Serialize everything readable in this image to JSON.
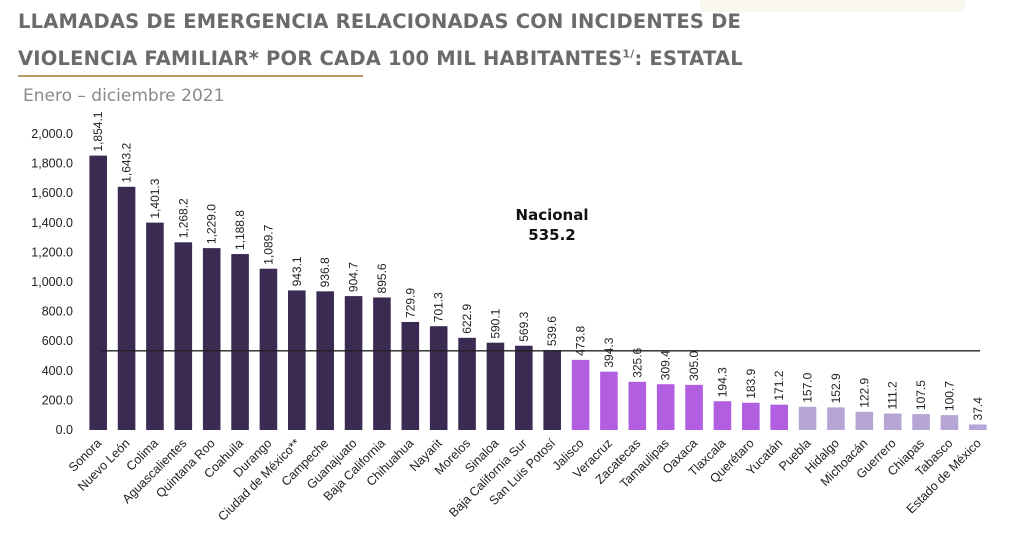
{
  "title_line1": "LLAMADAS DE EMERGENCIA RELACIONADAS CON INCIDENTES DE",
  "title_line2": "VIOLENCIA FAMILIAR* POR CADA 100 MIL HABITANTES",
  "title_superscript": "1/",
  "title_suffix": ": ESTATAL",
  "subtitle": "Enero – diciembre 2021",
  "colors": {
    "high": "#3b2a52",
    "mid": "#b15ee0",
    "low": "#b7a6d5",
    "reference_line": "#222222",
    "title": "#6b6b6b",
    "title_underline": "#b69a66"
  },
  "chart_data": {
    "type": "bar",
    "ylim": [
      0,
      2000
    ],
    "yticks": [
      "0.0",
      "200.0",
      "400.0",
      "600.0",
      "800.0",
      "1,000.0",
      "1,200.0",
      "1,400.0",
      "1,600.0",
      "1,800.0",
      "2,000.0"
    ],
    "ytick_values": [
      0,
      200,
      400,
      600,
      800,
      1000,
      1200,
      1400,
      1600,
      1800,
      2000
    ],
    "grid": false,
    "reference_line": {
      "label": "Nacional",
      "value_label": "535.2",
      "value": 535.2
    },
    "categories": [
      "Sonora",
      "Nuevo León",
      "Colima",
      "Aguascalientes",
      "Quintana Roo",
      "Coahuila",
      "Durango",
      "Ciudad de México**",
      "Campeche",
      "Guanajuato",
      "Baja California",
      "Chihuahua",
      "Nayarit",
      "Morelos",
      "Sinaloa",
      "Baja California Sur",
      "San Luis Potosí",
      "Jalisco",
      "Veracruz",
      "Zacatecas",
      "Tamaulipas",
      "Oaxaca",
      "Tlaxcala",
      "Querétaro",
      "Yucatán",
      "Puebla",
      "Hidalgo",
      "Michoacán",
      "Guerrero",
      "Chiapas",
      "Tabasco",
      "Estado de México"
    ],
    "values": [
      1854.1,
      1643.2,
      1401.3,
      1268.2,
      1229.0,
      1188.8,
      1089.7,
      943.1,
      936.8,
      904.7,
      895.6,
      729.9,
      701.3,
      622.9,
      590.1,
      569.3,
      539.6,
      473.8,
      394.3,
      325.6,
      309.4,
      305.0,
      194.3,
      183.9,
      171.2,
      157.0,
      152.9,
      122.9,
      111.2,
      107.5,
      100.7,
      37.4
    ],
    "value_labels": [
      "1,854.1",
      "1,643.2",
      "1,401.3",
      "1,268.2",
      "1,229.0",
      "1,188.8",
      "1,089.7",
      "943.1",
      "936.8",
      "904.7",
      "895.6",
      "729.9",
      "701.3",
      "622.9",
      "590.1",
      "569.3",
      "539.6",
      "473.8",
      "394.3",
      "325.6",
      "309.4",
      "305.0",
      "194.3",
      "183.9",
      "171.2",
      "157.0",
      "152.9",
      "122.9",
      "111.2",
      "107.5",
      "100.7",
      "37.4"
    ],
    "color_groups": [
      "high",
      "high",
      "high",
      "high",
      "high",
      "high",
      "high",
      "high",
      "high",
      "high",
      "high",
      "high",
      "high",
      "high",
      "high",
      "high",
      "high",
      "mid",
      "mid",
      "mid",
      "mid",
      "mid",
      "mid",
      "mid",
      "mid",
      "low",
      "low",
      "low",
      "low",
      "low",
      "low",
      "low"
    ]
  }
}
